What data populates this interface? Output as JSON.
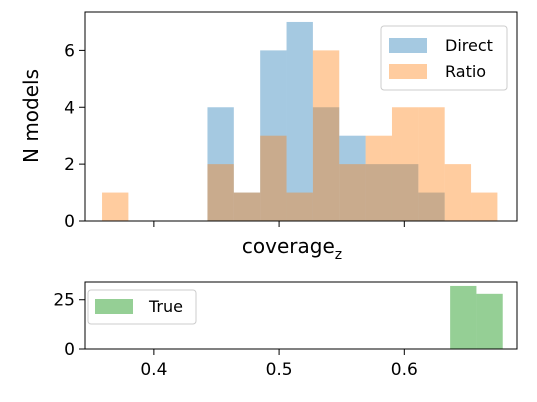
{
  "chart_data": [
    {
      "type": "histogram",
      "ylabel": "N models",
      "xlabel": "coverage",
      "xlabel_sub": "z",
      "ylim": [
        0,
        7.35
      ],
      "yticks": [
        "0",
        "2",
        "4",
        "6"
      ],
      "xlim": [
        0.345,
        0.69
      ],
      "bin_width": 0.02105,
      "bin_start": 0.3586,
      "grid": false,
      "legend_position": "top-right",
      "series": [
        {
          "name": "Direct",
          "color": "#1f77b4",
          "alpha": 0.4,
          "counts": [
            0,
            0,
            0,
            0,
            4,
            1,
            6,
            7,
            4,
            3,
            2,
            2,
            1,
            0,
            0,
            0
          ]
        },
        {
          "name": "Ratio",
          "color": "#ff7f0e",
          "alpha": 0.4,
          "counts": [
            1,
            0,
            0,
            0,
            2,
            1,
            3,
            1,
            6,
            2,
            3,
            4,
            4,
            2,
            1,
            0
          ]
        }
      ]
    },
    {
      "type": "histogram",
      "ylim": [
        0,
        34
      ],
      "yticks": [
        "0",
        "25"
      ],
      "xlim": [
        0.345,
        0.69
      ],
      "xticks": [
        "0.4",
        "0.5",
        "0.6"
      ],
      "legend_position": "top-left",
      "series": [
        {
          "name": "True",
          "color": "#2ca02c",
          "alpha": 0.5,
          "bins": [
            [
              0.6366,
              0.6576,
              32
            ],
            [
              0.6576,
              0.6786,
              28
            ]
          ]
        }
      ]
    }
  ]
}
